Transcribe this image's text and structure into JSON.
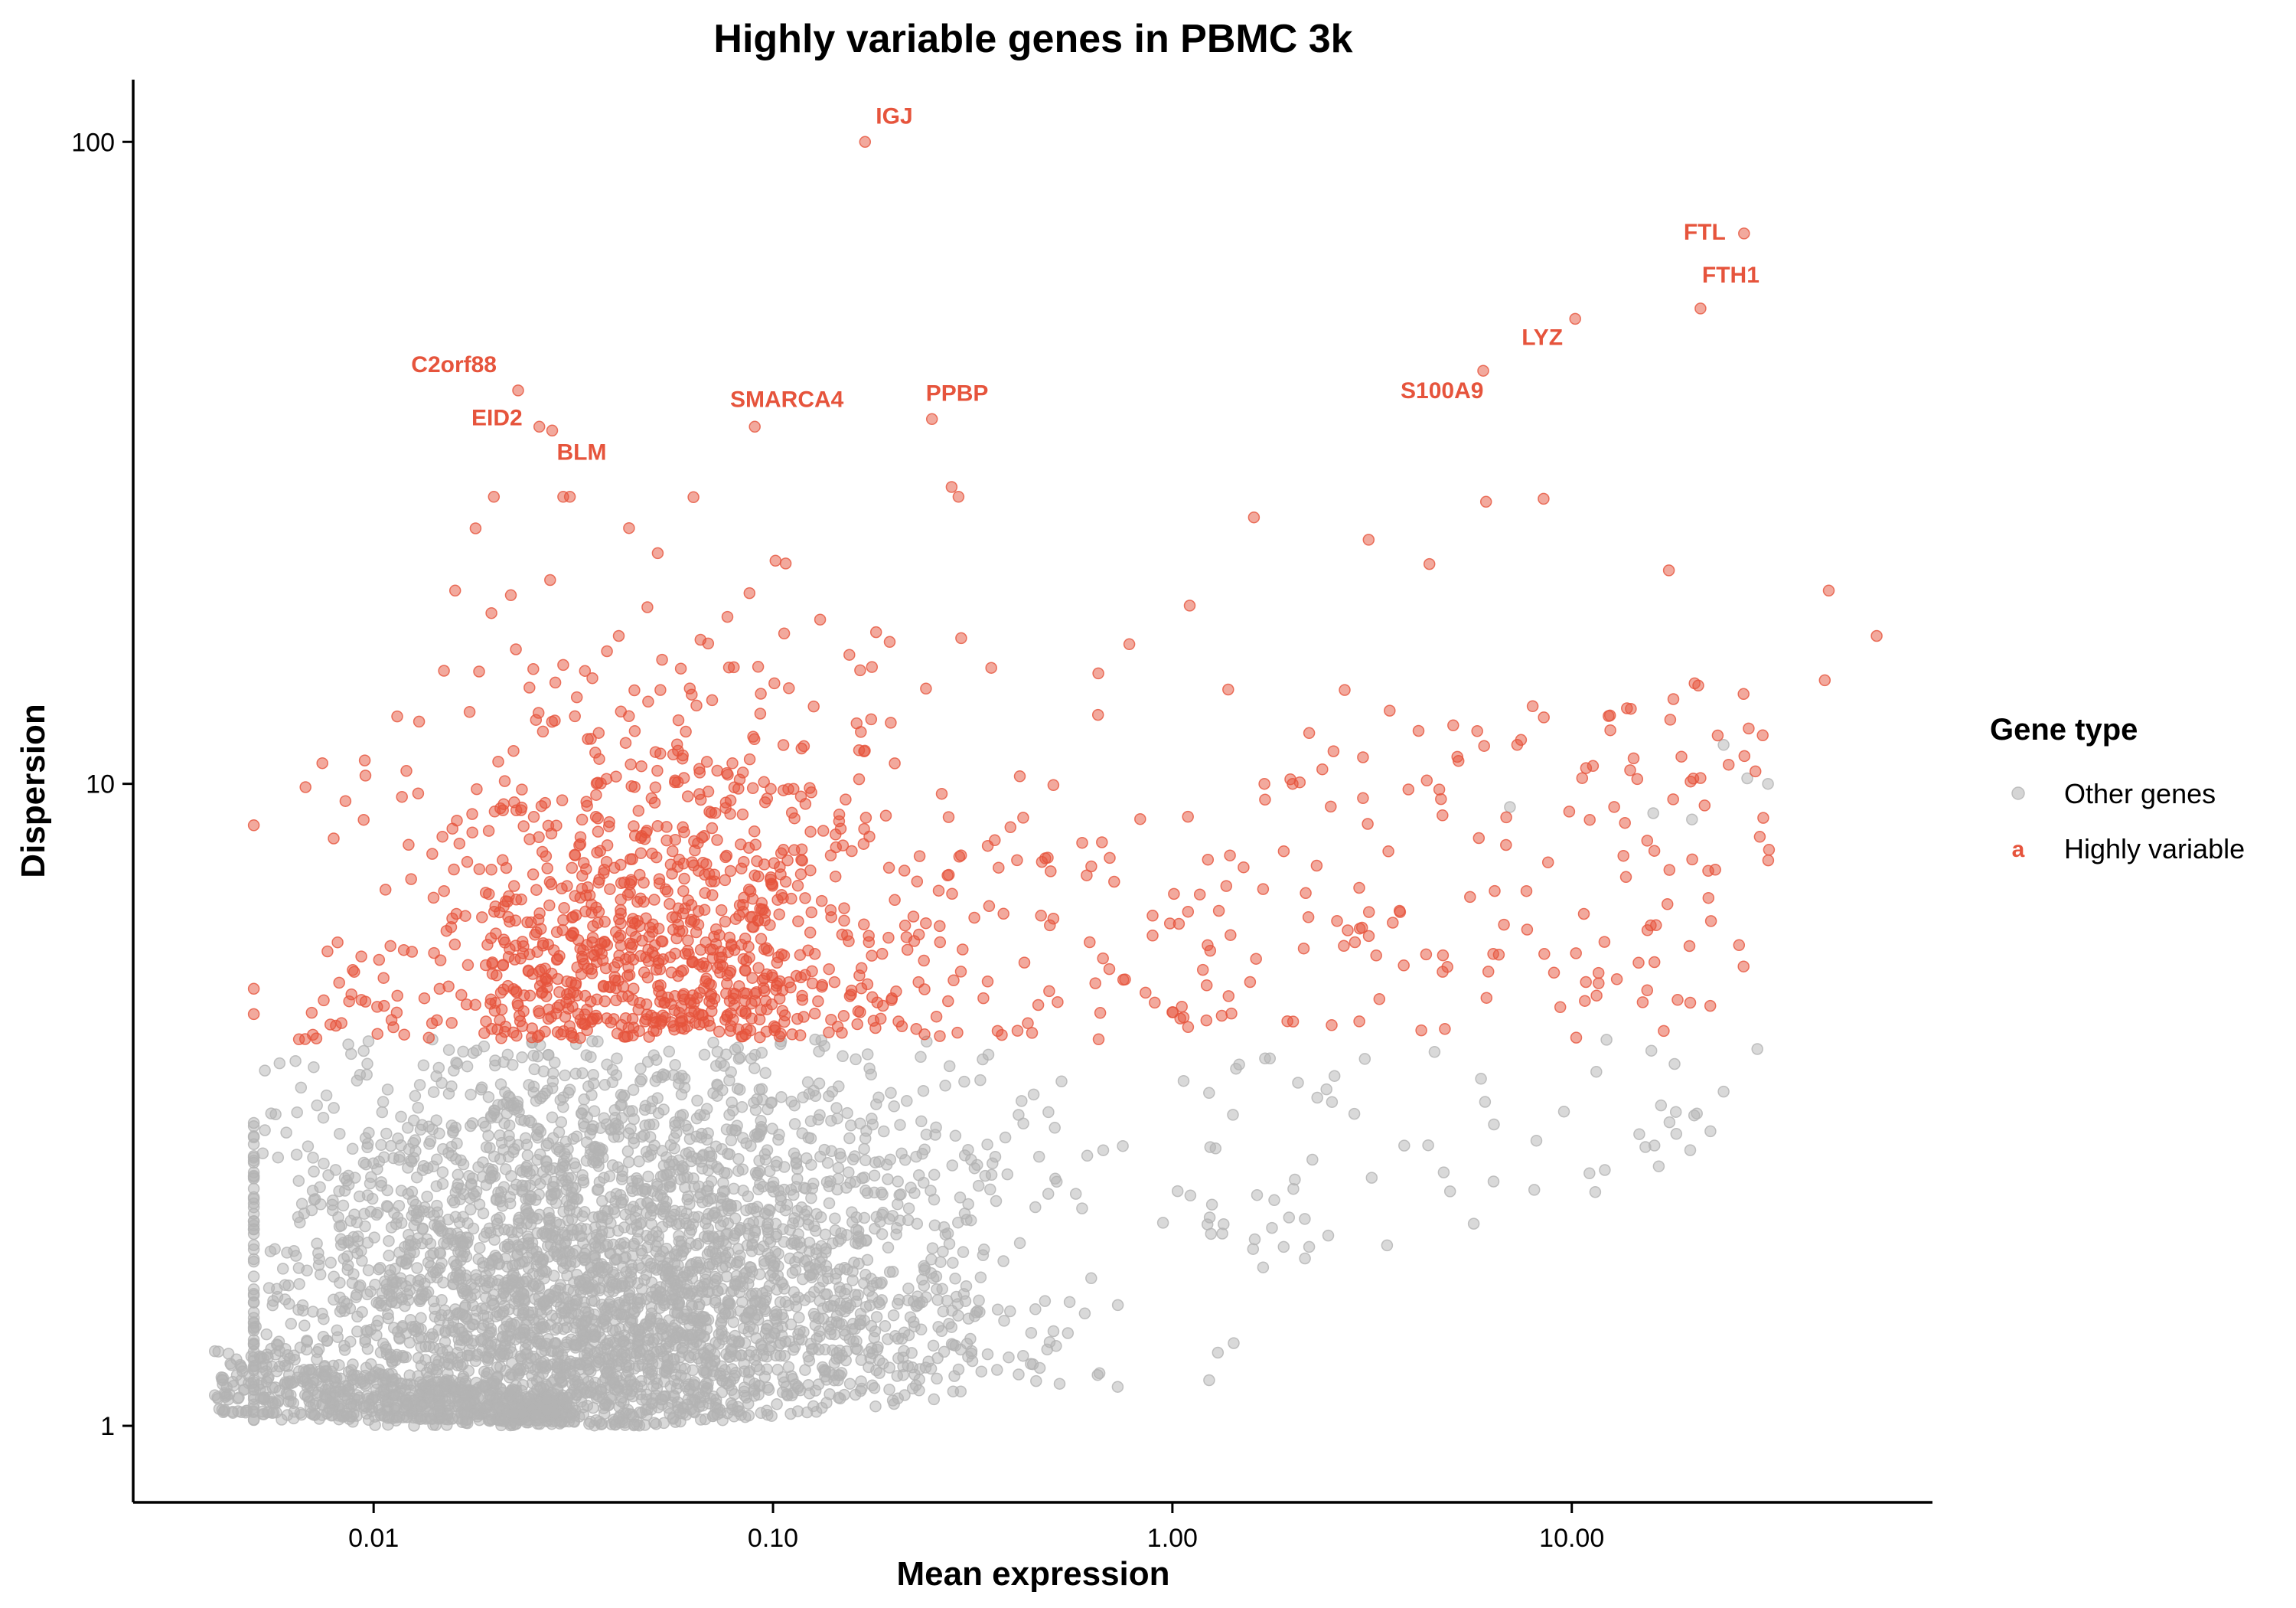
{
  "chart_data": {
    "type": "scatter",
    "title": "Highly variable genes in PBMC 3k",
    "xlabel": "Mean expression",
    "ylabel": "Dispersion",
    "x_scale": "log10",
    "y_scale": "log10",
    "xlim": [
      0.0025,
      80
    ],
    "ylim": [
      0.76,
      125
    ],
    "x_ticks": [
      {
        "value": 0.01,
        "label": "0.01"
      },
      {
        "value": 0.1,
        "label": "0.10"
      },
      {
        "value": 1,
        "label": "1.00"
      },
      {
        "value": 10,
        "label": "10.00"
      }
    ],
    "y_ticks": [
      {
        "value": 1,
        "label": "1"
      },
      {
        "value": 10,
        "label": "10"
      },
      {
        "value": 100,
        "label": "100"
      }
    ],
    "grid": false,
    "legend": {
      "title": "Gene type",
      "position": "right",
      "entries": [
        {
          "label": "Other genes",
          "key": "other",
          "color": "#b3b3b3"
        },
        {
          "label": "Highly variable",
          "key": "hv",
          "color": "#e6543c"
        }
      ]
    },
    "colors": {
      "other": "#b3b3b3",
      "hv": "#e6543c"
    },
    "highly_variable_threshold": 4.0,
    "series": [
      {
        "name": "Highly variable",
        "key": "hv",
        "points": [
          {
            "x": 0.17,
            "y": 100,
            "label": "IGJ"
          },
          {
            "x": 27.0,
            "y": 72,
            "label": "FTL"
          },
          {
            "x": 21.0,
            "y": 55,
            "label": "FTH1"
          },
          {
            "x": 10.2,
            "y": 53,
            "label": "LYZ"
          },
          {
            "x": 6.0,
            "y": 44,
            "label": "S100A9"
          },
          {
            "x": 0.023,
            "y": 41,
            "label": "C2orf88"
          },
          {
            "x": 0.026,
            "y": 36,
            "label": "EID2"
          },
          {
            "x": 0.028,
            "y": 35.5,
            "label": "BLM"
          },
          {
            "x": 0.09,
            "y": 36,
            "label": "SMARCA4"
          },
          {
            "x": 0.25,
            "y": 37,
            "label": "PPBP"
          },
          {
            "x": 0.28,
            "y": 29
          },
          {
            "x": 6.1,
            "y": 27.5
          },
          {
            "x": 8.5,
            "y": 27.8
          },
          {
            "x": 1.6,
            "y": 26
          },
          {
            "x": 3.1,
            "y": 24
          },
          {
            "x": 4.4,
            "y": 22
          },
          {
            "x": 17.5,
            "y": 21.5
          },
          {
            "x": 44,
            "y": 20
          },
          {
            "x": 58,
            "y": 17
          },
          {
            "x": 0.78,
            "y": 16.5
          },
          {
            "x": 43,
            "y": 14.5
          },
          {
            "x": 2.7,
            "y": 14
          },
          {
            "x": 3.5,
            "y": 13
          },
          {
            "x": 7.3,
            "y": 11.5
          },
          {
            "x": 14,
            "y": 10.5
          },
          {
            "x": 3.0,
            "y": 11
          },
          {
            "x": 2.2,
            "y": 12
          },
          {
            "x": 2.0,
            "y": 10
          },
          {
            "x": 1.7,
            "y": 10
          },
          {
            "x": 3.0,
            "y": 9.5
          },
          {
            "x": 3.9,
            "y": 9.8
          },
          {
            "x": 0.0085,
            "y": 9.4
          },
          {
            "x": 0.013,
            "y": 12.5
          },
          {
            "x": 0.015,
            "y": 15
          },
          {
            "x": 0.016,
            "y": 20
          },
          {
            "x": 0.018,
            "y": 25
          },
          {
            "x": 0.02,
            "y": 28
          },
          {
            "x": 0.0065,
            "y": 4.0
          },
          {
            "x": 0.007,
            "y": 4.4
          },
          {
            "x": 0.0075,
            "y": 4.6
          },
          {
            "x": 0.0082,
            "y": 4.9
          },
          {
            "x": 0.0088,
            "y": 4.7
          }
        ]
      },
      {
        "name": "Other genes",
        "key": "other",
        "points": [
          {
            "x": 24,
            "y": 11.5
          },
          {
            "x": 27.5,
            "y": 10.2
          },
          {
            "x": 31,
            "y": 10
          },
          {
            "x": 7.0,
            "y": 9.2
          },
          {
            "x": 20,
            "y": 8.8
          },
          {
            "x": 16,
            "y": 9
          },
          {
            "x": 1.3,
            "y": 1.3
          },
          {
            "x": 0.65,
            "y": 1.2
          },
          {
            "x": 1.9,
            "y": 1.9
          },
          {
            "x": 2.2,
            "y": 1.9
          }
        ]
      }
    ]
  }
}
